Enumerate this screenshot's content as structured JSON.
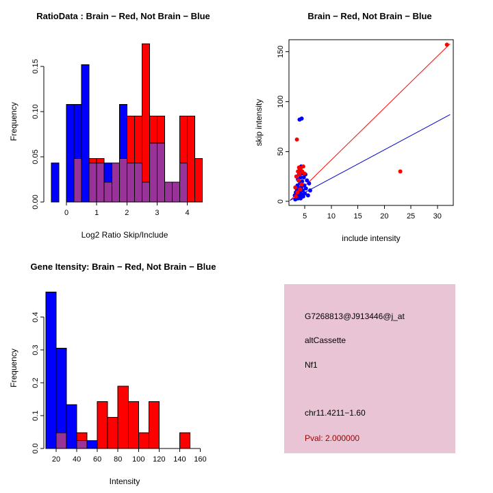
{
  "figure": {
    "background": "#ffffff"
  },
  "info_box": {
    "background": "#e8c4d4",
    "lines": [
      "G7268813@J913446@j_at",
      "altCassette",
      "Nf1",
      "chr11.4211−1.60"
    ],
    "pval": "Pval: 2.000000",
    "pval_color": "#990000"
  },
  "chart_data": [
    {
      "id": "ratio_hist",
      "type": "bar",
      "subtype": "overlaid-histogram",
      "title": "RatioData : Brain − Red, Not Brain − Blue",
      "xlabel": "Log2 Ratio Skip/Include",
      "ylabel": "Frequency",
      "xlim": [
        -0.75,
        4.6
      ],
      "ylim": [
        0,
        0.178
      ],
      "xticks": [
        0,
        1,
        2,
        3,
        4
      ],
      "yticks": [
        0,
        0.05,
        0.1,
        0.15
      ],
      "ytick_labels": [
        "0.00",
        "0.05",
        "0.10",
        "0.15"
      ],
      "bin_width": 0.25,
      "grid": false,
      "series_colors": {
        "red": "#ff0000",
        "blue": "#0000ff",
        "overlap": "#993399"
      },
      "bins": [
        {
          "x": -0.5,
          "blue": 0.043,
          "red": 0
        },
        {
          "x": 0.0,
          "blue": 0.108,
          "red": 0
        },
        {
          "x": 0.25,
          "blue": 0.108,
          "red": 0.048
        },
        {
          "x": 0.5,
          "blue": 0.152,
          "red": 0
        },
        {
          "x": 0.75,
          "blue": 0.043,
          "red": 0.048
        },
        {
          "x": 1.0,
          "blue": 0.043,
          "red": 0.048
        },
        {
          "x": 1.25,
          "blue": 0.043,
          "red": 0.022
        },
        {
          "x": 1.5,
          "blue": 0.043,
          "red": 0.043
        },
        {
          "x": 1.75,
          "blue": 0.108,
          "red": 0.048
        },
        {
          "x": 2.0,
          "blue": 0.043,
          "red": 0.095
        },
        {
          "x": 2.25,
          "blue": 0.043,
          "red": 0.095
        },
        {
          "x": 2.5,
          "blue": 0.022,
          "red": 0.175
        },
        {
          "x": 2.75,
          "blue": 0.065,
          "red": 0.095
        },
        {
          "x": 3.0,
          "blue": 0.065,
          "red": 0.095
        },
        {
          "x": 3.25,
          "blue": 0.022,
          "red": 0.022
        },
        {
          "x": 3.5,
          "blue": 0.022,
          "red": 0.022
        },
        {
          "x": 3.75,
          "blue": 0.043,
          "red": 0.095
        },
        {
          "x": 4.0,
          "blue": 0,
          "red": 0.095
        },
        {
          "x": 4.25,
          "blue": 0,
          "red": 0.048
        }
      ]
    },
    {
      "id": "intensity_scatter",
      "type": "scatter",
      "title": "Brain − Red, Not Brain − Blue",
      "xlabel": "include intensity",
      "ylabel": "skip intensity",
      "xlim": [
        2,
        33
      ],
      "ylim": [
        -4,
        162
      ],
      "xticks": [
        5,
        10,
        15,
        20,
        25,
        30
      ],
      "yticks": [
        0,
        50,
        100,
        150
      ],
      "grid": false,
      "series": [
        {
          "name": "not_brain",
          "color": "#0000ff",
          "points": [
            [
              3.1,
              6
            ],
            [
              3.2,
              2
            ],
            [
              3.3,
              9
            ],
            [
              3.4,
              4
            ],
            [
              3.5,
              12
            ],
            [
              3.5,
              7
            ],
            [
              3.6,
              16
            ],
            [
              3.7,
              3
            ],
            [
              3.7,
              22
            ],
            [
              3.8,
              8
            ],
            [
              3.9,
              27
            ],
            [
              3.9,
              13
            ],
            [
              4.0,
              5
            ],
            [
              4.0,
              31
            ],
            [
              4.1,
              18
            ],
            [
              4.1,
              9
            ],
            [
              4.2,
              24
            ],
            [
              4.2,
              3
            ],
            [
              4.3,
              35
            ],
            [
              4.3,
              14
            ],
            [
              4.4,
              7
            ],
            [
              4.5,
              20
            ],
            [
              4.5,
              28
            ],
            [
              4.6,
              11
            ],
            [
              4.7,
              5
            ],
            [
              4.8,
              24
            ],
            [
              4.9,
              16
            ],
            [
              5.0,
              8
            ],
            [
              5.1,
              27
            ],
            [
              5.2,
              13
            ],
            [
              5.4,
              21
            ],
            [
              5.6,
              6
            ],
            [
              5.8,
              18
            ],
            [
              6.0,
              11
            ],
            [
              4.0,
              82
            ],
            [
              4.4,
              83
            ]
          ]
        },
        {
          "name": "brain",
          "color": "#ff0000",
          "points": [
            [
              3.2,
              14
            ],
            [
              3.3,
              5
            ],
            [
              3.4,
              25
            ],
            [
              3.5,
              62
            ],
            [
              3.6,
              9
            ],
            [
              3.7,
              30
            ],
            [
              3.8,
              21
            ],
            [
              3.9,
              34
            ],
            [
              4.0,
              27
            ],
            [
              4.1,
              12
            ],
            [
              4.2,
              33
            ],
            [
              4.4,
              17
            ],
            [
              4.5,
              30
            ],
            [
              4.7,
              35
            ],
            [
              4.9,
              28
            ],
            [
              23.0,
              30
            ],
            [
              31.8,
              157
            ]
          ]
        }
      ],
      "lines": [
        {
          "name": "brain-fit",
          "color": "#ff0000",
          "from": [
            2.2,
            1
          ],
          "to": [
            32.4,
            158
          ]
        },
        {
          "name": "not-brain-fit",
          "color": "#0000cd",
          "from": [
            2.2,
            1
          ],
          "to": [
            32.4,
            87
          ]
        }
      ]
    },
    {
      "id": "gene_intensity_hist",
      "type": "bar",
      "subtype": "overlaid-histogram",
      "title": "Gene Itensity: Brain − Red, Not Brain − Blue",
      "xlabel": "Intensity",
      "ylabel": "Frequency",
      "xlim": [
        8,
        165
      ],
      "ylim": [
        0,
        0.49
      ],
      "xticks": [
        20,
        40,
        60,
        80,
        100,
        120,
        140,
        160
      ],
      "yticks": [
        0,
        0.1,
        0.2,
        0.3,
        0.4
      ],
      "ytick_labels": [
        "0.0",
        "0.1",
        "0.2",
        "0.3",
        "0.4"
      ],
      "bin_width": 10,
      "grid": false,
      "series_colors": {
        "red": "#ff0000",
        "blue": "#0000ff",
        "overlap": "#993399"
      },
      "bins": [
        {
          "x": 10,
          "blue": 0.476,
          "red": 0
        },
        {
          "x": 20,
          "blue": 0.305,
          "red": 0.048
        },
        {
          "x": 30,
          "blue": 0.133,
          "red": 0
        },
        {
          "x": 40,
          "blue": 0.024,
          "red": 0.048
        },
        {
          "x": 50,
          "blue": 0.024,
          "red": 0
        },
        {
          "x": 60,
          "blue": 0,
          "red": 0.143
        },
        {
          "x": 70,
          "blue": 0,
          "red": 0.095
        },
        {
          "x": 80,
          "blue": 0,
          "red": 0.19
        },
        {
          "x": 90,
          "blue": 0,
          "red": 0.143
        },
        {
          "x": 100,
          "blue": 0,
          "red": 0.048
        },
        {
          "x": 110,
          "blue": 0,
          "red": 0.143
        },
        {
          "x": 140,
          "blue": 0,
          "red": 0.048
        }
      ]
    }
  ]
}
